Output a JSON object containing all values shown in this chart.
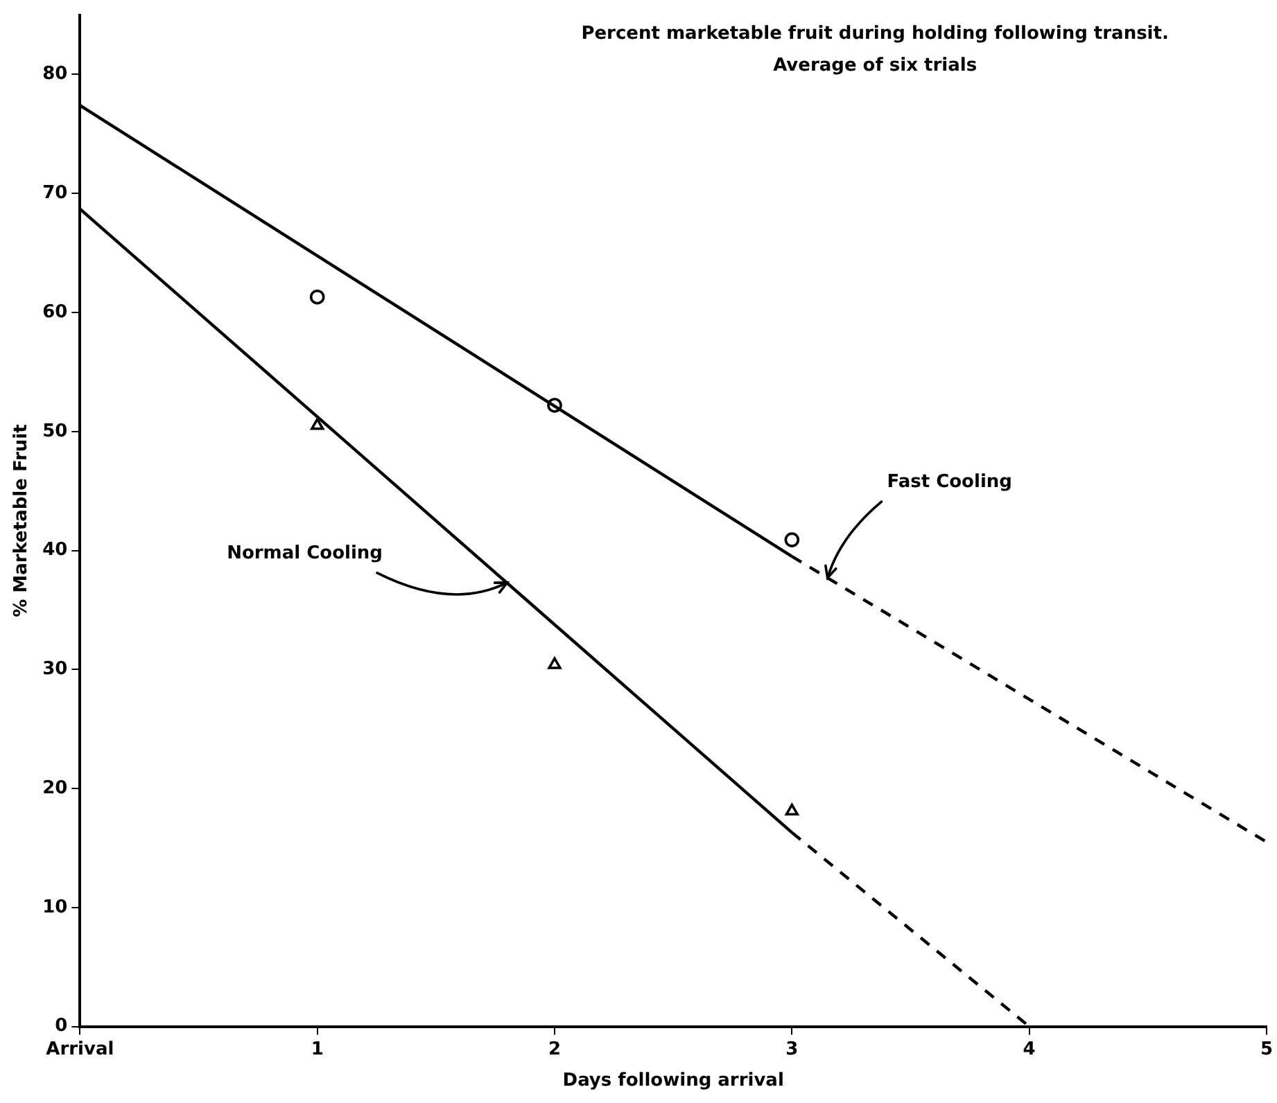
{
  "chart_data": {
    "type": "line",
    "title": "Percent marketable fruit during holding following transit.",
    "subtitle": "Average of six trials",
    "xlabel": "Days following arrival",
    "ylabel": "% Marketable Fruit",
    "xlim": [
      0,
      5
    ],
    "xticks": [
      {
        "value": 0,
        "label": "Arrival"
      },
      1,
      2,
      3,
      4,
      5
    ],
    "ylim": [
      0,
      85
    ],
    "yticks": [
      0,
      10,
      20,
      30,
      40,
      50,
      60,
      70,
      80
    ],
    "grid": false,
    "legend": false,
    "series": [
      {
        "color": "#000000",
        "x": [
          0,
          3
        ],
        "values": [
          77.4,
          39.5
        ],
        "line_style": "solid",
        "marker": "none"
      },
      {
        "color": "#000000",
        "x": [
          3,
          5
        ],
        "values": [
          39.5,
          15.5
        ],
        "line_style": "dashed",
        "marker": "none"
      },
      {
        "color": "#000000",
        "x": [
          0,
          3
        ],
        "values": [
          68.7,
          16.3
        ],
        "line_style": "solid",
        "marker": "none"
      },
      {
        "color": "#000000",
        "x": [
          3,
          4
        ],
        "values": [
          16.3,
          0
        ],
        "line_style": "dashed",
        "marker": "none"
      },
      {
        "type": "scatter",
        "color": "#000000",
        "x": [
          1,
          2,
          3
        ],
        "values": [
          61.3,
          52.2,
          40.9
        ],
        "marker": "circle"
      },
      {
        "type": "scatter",
        "color": "#000000",
        "x": [
          1,
          2,
          3
        ],
        "values": [
          50.5,
          30.4,
          18.1
        ],
        "marker": "triangle"
      }
    ],
    "annotations": [
      {
        "text": "Fast Cooling",
        "x": 3.15,
        "y": 37.7
      },
      {
        "text": "Normal Cooling",
        "x": 1.8,
        "y": 37.3
      }
    ]
  }
}
